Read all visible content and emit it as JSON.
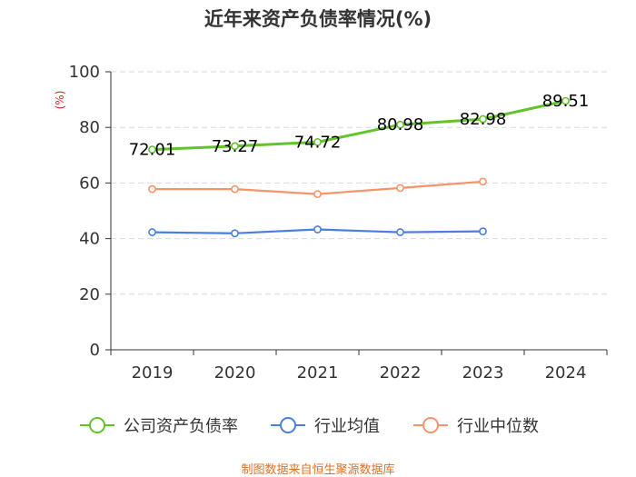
{
  "title": "近年来资产负债率情况(%)",
  "source": "制图数据来自恒生聚源数据库",
  "colors": {
    "company": "#62c42a",
    "industry_avg": "#4a7fe0",
    "industry_median": "#f5946b",
    "grid": "#d9d9d9",
    "axis": "#333333",
    "unit": "#e02020",
    "source": "#e07020"
  },
  "chart_data": {
    "type": "line",
    "title": "近年来资产负债率情况(%)",
    "x": [
      "2019",
      "2020",
      "2021",
      "2022",
      "2023",
      "2024"
    ],
    "yunit": "(%)",
    "ylim": [
      0,
      100
    ],
    "yticks": [
      0,
      20,
      40,
      60,
      80,
      100
    ],
    "grid": true,
    "legend_position": "bottom",
    "series": [
      {
        "name": "公司资产负债率",
        "color": "#62c42a",
        "values": [
          72.01,
          73.27,
          74.72,
          80.98,
          82.98,
          89.51
        ],
        "labels": [
          "72.01",
          "73.27",
          "74.72",
          "80.98",
          "82.98",
          "89.51"
        ]
      },
      {
        "name": "行业均值",
        "color": "#4a7fe0",
        "values": [
          42.3,
          41.9,
          43.3,
          42.3,
          42.6,
          null
        ]
      },
      {
        "name": "行业中位数",
        "color": "#f5946b",
        "values": [
          57.8,
          57.8,
          56.0,
          58.2,
          60.5,
          null
        ]
      }
    ]
  }
}
